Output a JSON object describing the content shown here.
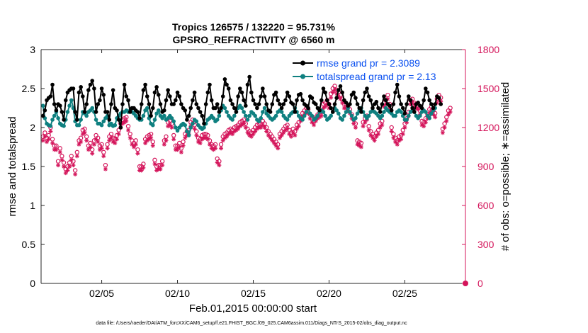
{
  "chart_data": {
    "type": "line",
    "title_line1": "Tropics 126575 / 132220 = 95.731%",
    "title_line2": "GPSRO_REFRACTIVITY @ 6560 m",
    "xlabel": "Feb.01,2015 00:00:00 start",
    "ylabel_left": "rmse and totalspread",
    "ylabel_right": "# of obs: o=possible; ∗=assimilated",
    "footer": "data file: /Users/raeder/DAI/ATM_forcXX/CAM6_setup/f.e21.FHIST_BGC.f09_025.CAM6assim.011/Diags_NTrS_2015-02/obs_diag_output.nc",
    "x_range_days": [
      1,
      29
    ],
    "x_ticks": [
      {
        "day": 5,
        "label": "02/05"
      },
      {
        "day": 10,
        "label": "02/10"
      },
      {
        "day": 15,
        "label": "02/15"
      },
      {
        "day": 20,
        "label": "02/20"
      },
      {
        "day": 25,
        "label": "02/25"
      }
    ],
    "ylim_left": [
      0,
      3
    ],
    "yticks_left": [
      "0",
      "0.5",
      "1",
      "1.5",
      "2",
      "2.5",
      "3"
    ],
    "ylim_right": [
      0,
      1800
    ],
    "yticks_right": [
      "0",
      "300",
      "600",
      "900",
      "1200",
      "1500",
      "1800"
    ],
    "colors": {
      "rmse": "#000000",
      "spread": "#0f8080",
      "obs": "#d4145a",
      "legend_text": "#0a50f0"
    },
    "x_days": [
      1.125,
      1.25,
      1.375,
      1.5,
      1.625,
      1.75,
      1.875,
      2.0,
      2.125,
      2.25,
      2.375,
      2.5,
      2.625,
      2.75,
      2.875,
      3.0,
      3.125,
      3.25,
      3.375,
      3.5,
      3.625,
      3.75,
      3.875,
      4.0,
      4.125,
      4.25,
      4.375,
      4.5,
      4.625,
      4.75,
      4.875,
      5.0,
      5.125,
      5.25,
      5.375,
      5.5,
      5.625,
      5.75,
      5.875,
      6.0,
      6.125,
      6.25,
      6.375,
      6.5,
      6.625,
      6.75,
      6.875,
      7.0,
      7.125,
      7.25,
      7.375,
      7.5,
      7.625,
      7.75,
      7.875,
      8.0,
      8.125,
      8.25,
      8.375,
      8.5,
      8.625,
      8.75,
      8.875,
      9.0,
      9.125,
      9.25,
      9.375,
      9.5,
      9.625,
      9.75,
      9.875,
      10.0,
      10.125,
      10.25,
      10.375,
      10.5,
      10.625,
      10.75,
      10.875,
      11.0,
      11.125,
      11.25,
      11.375,
      11.5,
      11.625,
      11.75,
      11.875,
      12.0,
      12.125,
      12.25,
      12.375,
      12.5,
      12.625,
      12.75,
      12.875,
      13.0,
      13.125,
      13.25,
      13.375,
      13.5,
      13.625,
      13.75,
      13.875,
      14.0,
      14.125,
      14.25,
      14.375,
      14.5,
      14.625,
      14.75,
      14.875,
      15.0,
      15.125,
      15.25,
      15.375,
      15.5,
      15.625,
      15.75,
      15.875,
      16.0,
      16.125,
      16.25,
      16.375,
      16.5,
      16.625,
      16.75,
      16.875,
      17.0,
      17.125,
      17.25,
      17.375,
      17.5,
      17.625,
      17.75,
      17.875,
      18.0,
      18.125,
      18.25,
      18.375,
      18.5,
      18.625,
      18.75,
      18.875,
      19.0,
      19.125,
      19.25,
      19.375,
      19.5,
      19.625,
      19.75,
      19.875,
      20.0,
      20.125,
      20.25,
      20.375,
      20.5,
      20.625,
      20.75,
      20.875,
      21.0,
      21.125,
      21.25,
      21.375,
      21.5,
      21.625,
      21.75,
      21.875,
      22.0,
      22.125,
      22.25,
      22.375,
      22.5,
      22.625,
      22.75,
      22.875,
      23.0,
      23.125,
      23.25,
      23.375,
      23.5,
      23.625,
      23.75,
      23.875,
      24.0,
      24.125,
      24.25,
      24.375,
      24.5,
      24.625,
      24.75,
      24.875,
      25.0,
      25.125,
      25.25,
      25.375,
      25.5,
      25.625,
      25.75,
      25.875,
      26.0,
      26.125,
      26.25,
      26.375,
      26.5,
      26.625,
      26.75,
      26.875,
      27.0,
      27.125,
      27.25,
      27.375,
      27.5,
      27.625,
      27.75,
      27.875,
      28.0,
      28.125,
      28.25,
      28.375,
      28.5,
      28.625,
      28.75
    ],
    "series": [
      {
        "name": "rmse",
        "legend": "rmse grand pr = 2.3089",
        "values": [
          2.15,
          2.22,
          2.35,
          2.38,
          2.4,
          2.55,
          2.3,
          2.22,
          2.3,
          2.28,
          2.2,
          2.1,
          2.35,
          2.45,
          2.48,
          2.5,
          2.5,
          2.2,
          2.1,
          2.45,
          2.52,
          2.4,
          2.2,
          2.3,
          2.48,
          2.55,
          2.6,
          2.5,
          2.2,
          2.3,
          2.35,
          2.5,
          2.42,
          2.2,
          2.2,
          2.1,
          2.3,
          2.48,
          2.25,
          2.22,
          2.1,
          2.0,
          2.3,
          2.55,
          2.4,
          2.35,
          2.2,
          2.25,
          2.25,
          2.22,
          2.2,
          2.12,
          2.3,
          2.48,
          2.55,
          2.4,
          2.3,
          2.15,
          2.25,
          2.45,
          2.52,
          2.42,
          2.3,
          2.2,
          2.22,
          2.35,
          2.48,
          2.4,
          2.3,
          2.3,
          2.35,
          2.45,
          2.4,
          2.3,
          2.25,
          2.22,
          2.1,
          2.15,
          2.25,
          2.35,
          2.45,
          2.3,
          2.25,
          2.2,
          2.15,
          2.05,
          2.3,
          2.45,
          2.55,
          2.35,
          2.25,
          2.25,
          2.3,
          2.2,
          2.25,
          2.4,
          2.62,
          2.55,
          2.5,
          2.35,
          2.3,
          2.25,
          2.2,
          2.4,
          2.5,
          2.45,
          2.35,
          2.28,
          2.55,
          2.65,
          2.45,
          2.35,
          2.3,
          2.25,
          2.3,
          2.4,
          2.5,
          2.4,
          2.3,
          2.22,
          2.2,
          2.3,
          2.42,
          2.45,
          2.35,
          2.3,
          2.25,
          2.3,
          2.35,
          2.45,
          2.4,
          2.32,
          2.3,
          2.2,
          2.35,
          2.42,
          2.43,
          2.35,
          2.3,
          2.28,
          2.25,
          2.4,
          2.38,
          2.32,
          2.3,
          2.25,
          2.22,
          2.35,
          2.5,
          2.45,
          2.35,
          2.3,
          2.25,
          2.2,
          2.3,
          2.38,
          2.48,
          2.53,
          2.45,
          2.35,
          2.32,
          2.28,
          2.3,
          2.42,
          2.45,
          2.38,
          2.3,
          2.25,
          2.2,
          2.35,
          2.45,
          2.5,
          2.4,
          2.35,
          2.25,
          2.3,
          2.33,
          2.25,
          2.2,
          2.3,
          2.4,
          2.35,
          2.3,
          2.28,
          2.22,
          2.3,
          2.45,
          2.55,
          2.4,
          2.3,
          2.25,
          2.18,
          2.3,
          2.4,
          2.35,
          2.25,
          2.2,
          2.3,
          2.32,
          2.28,
          2.25,
          2.35,
          2.5,
          2.45,
          2.35,
          2.3,
          2.25,
          2.3,
          2.4,
          2.38,
          2.3
        ]
      },
      {
        "name": "totalspread",
        "legend": "totalspread grand pr = 2.13",
        "values": [
          2.28,
          2.12,
          2.05,
          2.03,
          2.02,
          2.1,
          2.15,
          2.2,
          2.12,
          2.05,
          2.03,
          2.02,
          2.1,
          2.2,
          2.28,
          2.35,
          2.25,
          2.08,
          2.03,
          2.03,
          2.1,
          2.2,
          2.18,
          2.15,
          2.2,
          2.22,
          2.25,
          2.2,
          2.1,
          2.05,
          2.05,
          2.03,
          2.08,
          2.12,
          2.15,
          2.03,
          2.05,
          2.02,
          2.03,
          2.12,
          2.15,
          2.18,
          2.2,
          2.2,
          2.22,
          2.2,
          2.22,
          2.2,
          2.18,
          2.15,
          2.12,
          2.1,
          2.1,
          2.15,
          2.22,
          2.25,
          2.12,
          2.05,
          2.03,
          2.1,
          2.18,
          2.22,
          2.15,
          2.12,
          2.15,
          2.1,
          2.12,
          2.15,
          2.12,
          2.08,
          2.0,
          1.96,
          2.0,
          2.03,
          2.05,
          2.03,
          1.95,
          1.9,
          2.0,
          2.05,
          2.1,
          2.08,
          2.03,
          2.0,
          1.98,
          2.0,
          2.05,
          2.1,
          2.12,
          2.15,
          2.12,
          2.08,
          2.1,
          2.15,
          2.22,
          2.28,
          2.25,
          2.2,
          2.15,
          2.12,
          2.1,
          2.15,
          2.2,
          2.25,
          2.28,
          2.25,
          2.2,
          2.15,
          2.1,
          2.15,
          2.2,
          2.18,
          2.15,
          2.1,
          2.08,
          2.12,
          2.2,
          2.25,
          2.18,
          2.15,
          2.12,
          2.1,
          2.12,
          2.15,
          2.2,
          2.22,
          2.2,
          2.15,
          2.12,
          2.1,
          2.15,
          2.18,
          2.2,
          2.25,
          2.2,
          2.15,
          2.12,
          2.1,
          2.15,
          2.2,
          2.25,
          2.18,
          2.15,
          2.1,
          2.12,
          2.15,
          2.2,
          2.22,
          2.2,
          2.15,
          2.1,
          2.12,
          2.15,
          2.2,
          2.25,
          2.22,
          2.18,
          2.12,
          2.1,
          2.15,
          2.2,
          2.25,
          2.2,
          2.15,
          2.1,
          2.12,
          2.18,
          2.22,
          2.25,
          2.2,
          2.15,
          2.12,
          2.15,
          2.2,
          2.22,
          2.2,
          2.18,
          2.15,
          2.12,
          2.15,
          2.2,
          2.25,
          2.22,
          2.2,
          2.18,
          2.15,
          2.15,
          2.2,
          2.22,
          2.2,
          2.15,
          2.1,
          2.1,
          2.15,
          2.2,
          2.22,
          2.2,
          2.15,
          2.12,
          2.15,
          2.2,
          2.22,
          2.2,
          2.15,
          2.12,
          2.18,
          2.22,
          2.25
        ]
      },
      {
        "name": "obs_possible",
        "marker": "o",
        "values": [
          1130,
          1160,
          1120,
          1140,
          1200,
          1110,
          1060,
          1060,
          940,
          1040,
          980,
          930,
          880,
          900,
          930,
          980,
          940,
          870,
          1010,
          1100,
          1120,
          1180,
          1190,
          1130,
          1060,
          1080,
          1030,
          1100,
          1140,
          1120,
          1060,
          1070,
          1010,
          910,
          1070,
          1130,
          1150,
          1120,
          1110,
          1140,
          1180,
          1230,
          1260,
          1270,
          1280,
          1210,
          1150,
          1100,
          1080,
          1100,
          1030,
          900,
          900,
          920,
          1110,
          1130,
          1140,
          1150,
          1090,
          950,
          900,
          910,
          910,
          940,
          1100,
          1130,
          1240,
          1250,
          1230,
          1140,
          1060,
          1060,
          1080,
          1040,
          1090,
          1150,
          1170,
          1180,
          1240,
          1260,
          1220,
          1170,
          1120,
          1110,
          1140,
          1150,
          1150,
          1140,
          1100,
          1070,
          1060,
          1070,
          960,
          940,
          1070,
          1130,
          1150,
          1160,
          1180,
          1190,
          1180,
          1200,
          1210,
          1220,
          1240,
          1250,
          1260,
          1230,
          1190,
          1170,
          1160,
          1180,
          1200,
          1220,
          1230,
          1230,
          1250,
          1230,
          1200,
          1170,
          1150,
          1130,
          1110,
          1090,
          1070,
          1150,
          1170,
          1190,
          1210,
          1220,
          1180,
          1160,
          1190,
          1170,
          1220,
          1240,
          1280,
          1310,
          1330,
          1350,
          1340,
          1300,
          1270,
          1250,
          1280,
          1300,
          1310,
          1320,
          1380,
          1390,
          1410,
          1380,
          1460,
          1500,
          1520,
          1490,
          1470,
          1450,
          1420,
          1380,
          1380,
          1360,
          1340,
          1300,
          1260,
          1230,
          1100,
          1090,
          1080,
          1240,
          1270,
          1290,
          1210,
          1170,
          1150,
          1130,
          1160,
          1180,
          1230,
          1250,
          1390,
          1410,
          1450,
          1380,
          1200,
          1150,
          1120,
          1100,
          1130,
          1140,
          1180,
          1230,
          1270,
          1320,
          1410,
          1420,
          1390,
          1380,
          1370,
          1330,
          1250,
          1240,
          1270,
          1300,
          1340,
          1360,
          1330,
          1310,
          1420,
          1450,
          1430,
          1190,
          1230,
          1280,
          1330,
          1350
        ]
      },
      {
        "name": "obs_assimilated",
        "marker": "*",
        "values": [
          1100,
          1130,
          1090,
          1110,
          1170,
          1080,
          1030,
          1030,
          910,
          1010,
          950,
          900,
          850,
          870,
          900,
          950,
          910,
          840,
          980,
          1070,
          1090,
          1150,
          1160,
          1100,
          1030,
          1050,
          1000,
          1070,
          1110,
          1090,
          1030,
          1040,
          980,
          880,
          1040,
          1100,
          1120,
          1090,
          1080,
          1110,
          1150,
          1200,
          1230,
          1240,
          1250,
          1180,
          1120,
          1070,
          1050,
          1070,
          1000,
          870,
          870,
          890,
          1080,
          1100,
          1110,
          1120,
          1060,
          920,
          870,
          880,
          880,
          910,
          1070,
          1100,
          1210,
          1220,
          1200,
          1110,
          1030,
          1030,
          1050,
          1010,
          1060,
          1120,
          1140,
          1150,
          1210,
          1230,
          1190,
          1140,
          1090,
          1080,
          1110,
          1120,
          1120,
          1110,
          1070,
          1040,
          1030,
          1040,
          930,
          910,
          1040,
          1100,
          1120,
          1130,
          1150,
          1160,
          1150,
          1170,
          1180,
          1190,
          1210,
          1220,
          1230,
          1200,
          1160,
          1140,
          1130,
          1150,
          1170,
          1190,
          1200,
          1200,
          1220,
          1200,
          1170,
          1140,
          1120,
          1100,
          1080,
          1060,
          1040,
          1120,
          1140,
          1160,
          1180,
          1190,
          1150,
          1130,
          1160,
          1140,
          1190,
          1210,
          1250,
          1280,
          1300,
          1320,
          1310,
          1270,
          1240,
          1220,
          1250,
          1270,
          1280,
          1290,
          1350,
          1360,
          1380,
          1350,
          1430,
          1470,
          1490,
          1460,
          1440,
          1420,
          1390,
          1350,
          1350,
          1330,
          1310,
          1270,
          1230,
          1200,
          1070,
          1060,
          1050,
          1210,
          1240,
          1260,
          1180,
          1140,
          1120,
          1100,
          1130,
          1150,
          1200,
          1220,
          1360,
          1380,
          1420,
          1350,
          1170,
          1120,
          1090,
          1070,
          1100,
          1110,
          1150,
          1200,
          1240,
          1290,
          1380,
          1390,
          1360,
          1350,
          1340,
          1300,
          1220,
          1210,
          1240,
          1270,
          1310,
          1330,
          1300,
          1280,
          1390,
          1420,
          1400,
          1160,
          1200,
          1250,
          1300,
          1320
        ]
      }
    ]
  }
}
